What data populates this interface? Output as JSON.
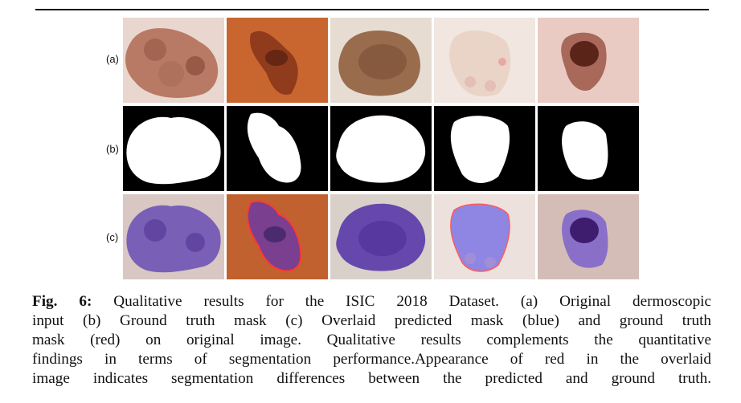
{
  "figure": {
    "row_labels": [
      "(a)",
      "(b)",
      "(c)"
    ],
    "caption": {
      "label": "Fig. 6:",
      "lines": [
        "Qualitative results for the ISIC 2018 Dataset. (a) Original dermoscopic",
        "input (b) Ground truth mask (c) Overlaid predicted mask (blue) and ground truth",
        "mask (red) on original image. Qualitative results complements the quantitative",
        "findings in terms of segmentation performance.Appearance of red in the overlaid",
        "image indicates segmentation differences between the predicted and ground truth."
      ]
    },
    "colors": {
      "predicted_mask": "#5a4bd1",
      "ground_truth_mask": "#ff3b2f"
    }
  }
}
